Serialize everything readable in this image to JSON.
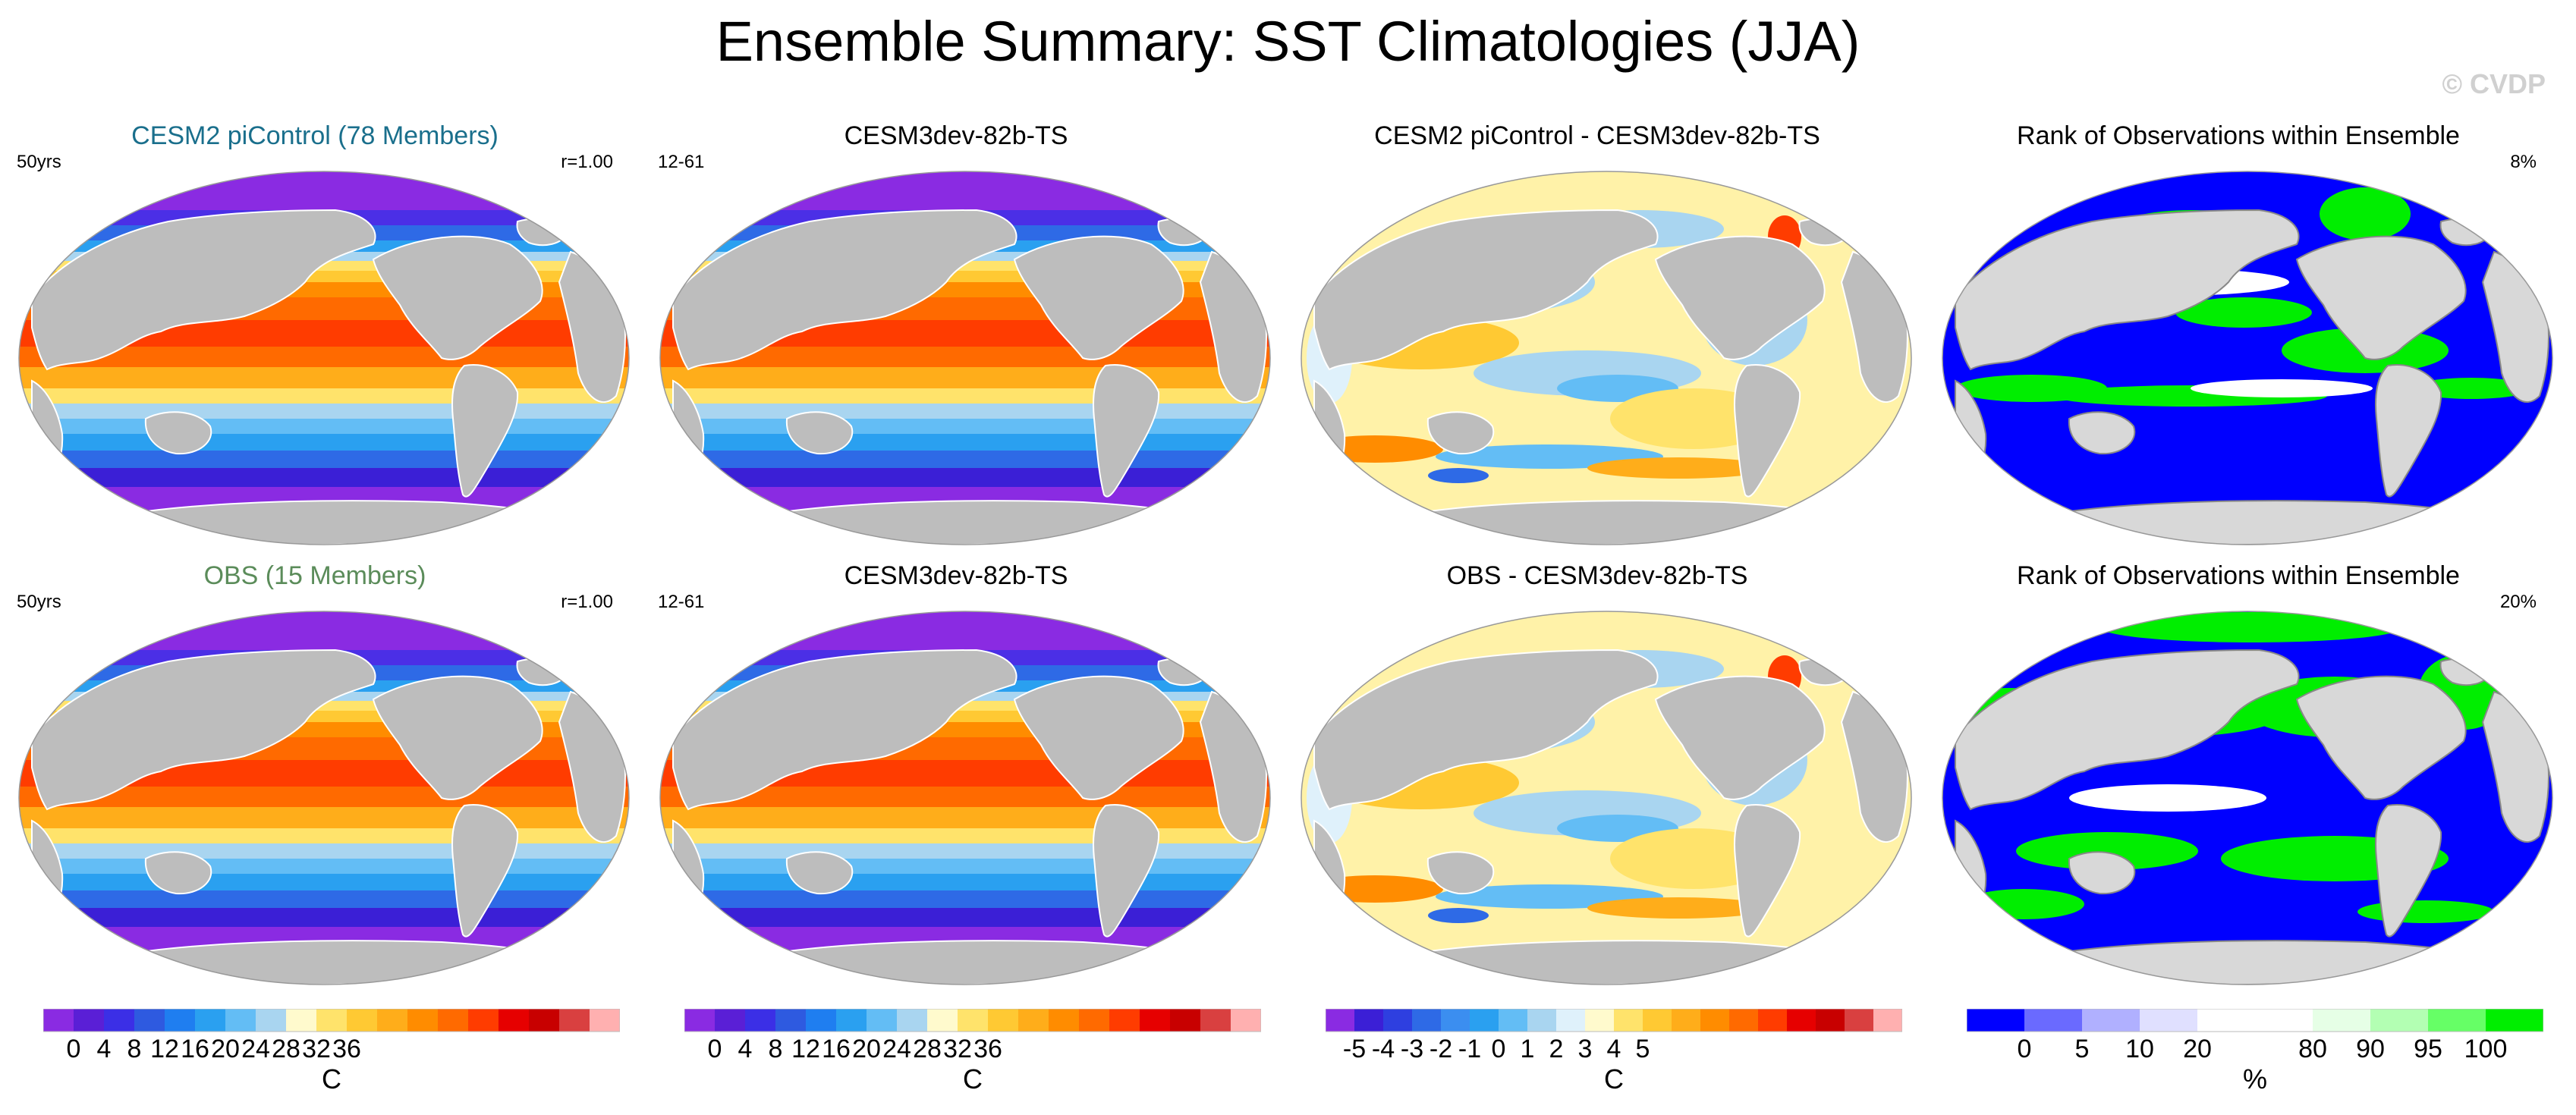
{
  "title": "Ensemble Summary: SST Climatologies (JJA)",
  "copyright": "© CVDP",
  "panels": [
    {
      "title": "CESM2 piControl (78 Members)",
      "title_color": "#1a6f8c",
      "left": "50yrs",
      "right": "r=1.00",
      "map": "sst"
    },
    {
      "title": "CESM3dev-82b-TS",
      "title_color": "#000000",
      "left": "12-61",
      "right": "",
      "map": "sst"
    },
    {
      "title": "CESM2 piControl - CESM3dev-82b-TS",
      "title_color": "#000000",
      "left": "",
      "right": "",
      "map": "diff"
    },
    {
      "title": "Rank of Observations within Ensemble",
      "title_color": "#000000",
      "left": "",
      "right": "8%",
      "map": "rank"
    },
    {
      "title": "OBS (15 Members)",
      "title_color": "#5b8c5a",
      "left": "50yrs",
      "right": "r=1.00",
      "map": "sst"
    },
    {
      "title": "CESM3dev-82b-TS",
      "title_color": "#000000",
      "left": "12-61",
      "right": "",
      "map": "sst"
    },
    {
      "title": "OBS - CESM3dev-82b-TS",
      "title_color": "#000000",
      "left": "",
      "right": "",
      "map": "diff"
    },
    {
      "title": "Rank of Observations within Ensemble",
      "title_color": "#000000",
      "left": "",
      "right": "20%",
      "map": "rank"
    }
  ],
  "colorbars": [
    {
      "label": "C",
      "colors": [
        "#8a2be2",
        "#5a1fd6",
        "#3b2fe6",
        "#2e5ae0",
        "#1f7ef0",
        "#2aa0f0",
        "#63bdf5",
        "#a9d5f0",
        "#fffacd",
        "#ffe36b",
        "#ffc933",
        "#ffad1a",
        "#ff8c00",
        "#ff6a00",
        "#ff3c00",
        "#e60000",
        "#c80000",
        "#d94040",
        "#ffb0b0"
      ],
      "ticks": [
        "0",
        "4",
        "8",
        "12",
        "16",
        "20",
        "24",
        "28",
        "32",
        "36"
      ],
      "tick_index": [
        1,
        2,
        3,
        4,
        5,
        6,
        7,
        8,
        9,
        10
      ]
    },
    {
      "label": "C",
      "colors": [
        "#8a2be2",
        "#5a1fd6",
        "#3b2fe6",
        "#2e5ae0",
        "#1f7ef0",
        "#2aa0f0",
        "#63bdf5",
        "#a9d5f0",
        "#fffacd",
        "#ffe36b",
        "#ffc933",
        "#ffad1a",
        "#ff8c00",
        "#ff6a00",
        "#ff3c00",
        "#e60000",
        "#c80000",
        "#d94040",
        "#ffb0b0"
      ],
      "ticks": [
        "0",
        "4",
        "8",
        "12",
        "16",
        "20",
        "24",
        "28",
        "32",
        "36"
      ],
      "tick_index": [
        1,
        2,
        3,
        4,
        5,
        6,
        7,
        8,
        9,
        10
      ]
    },
    {
      "label": "C",
      "colors": [
        "#8a2be2",
        "#3b1fd6",
        "#2e3fe0",
        "#2e6ae6",
        "#3b8ef0",
        "#2aa0f0",
        "#63bdf5",
        "#a9d5f0",
        "#dff1fb",
        "#fffacd",
        "#ffe36b",
        "#ffc933",
        "#ffad1a",
        "#ff8c00",
        "#ff6a00",
        "#ff3c00",
        "#e60000",
        "#c80000",
        "#d94040",
        "#ffb0b0"
      ],
      "ticks": [
        "-5",
        "-4",
        "-3",
        "-2",
        "-1",
        "0",
        "1",
        "2",
        "3",
        "4",
        "5"
      ],
      "tick_index": [
        1,
        2,
        3,
        4,
        5,
        6,
        7,
        8,
        9,
        10,
        11
      ]
    },
    {
      "label": "%",
      "colors": [
        "#0000ff",
        "#6a6aff",
        "#b0b0ff",
        "#e0e0ff",
        "#ffffff",
        "#ffffff",
        "#e6ffe6",
        "#b3ffb3",
        "#66ff66",
        "#00ee00"
      ],
      "ticks": [
        "0",
        "5",
        "10",
        "20",
        "80",
        "90",
        "95",
        "100"
      ],
      "tick_index": [
        1,
        2,
        3,
        4,
        6,
        7,
        8,
        9
      ]
    }
  ],
  "chart_data": [
    {
      "type": "heatmap",
      "title": "CESM2 piControl (78 Members)",
      "annotation_left": "50yrs",
      "annotation_right": "r=1.00",
      "variable": "SST",
      "units": "C",
      "levels": [
        0,
        36
      ]
    },
    {
      "type": "heatmap",
      "title": "CESM3dev-82b-TS",
      "annotation_left": "12-61",
      "variable": "SST",
      "units": "C",
      "levels": [
        0,
        36
      ]
    },
    {
      "type": "heatmap",
      "title": "CESM2 piControl - CESM3dev-82b-TS",
      "variable": "SST difference",
      "units": "C",
      "levels": [
        -5,
        5
      ]
    },
    {
      "type": "heatmap",
      "title": "Rank of Observations within Ensemble",
      "annotation_right": "8%",
      "units": "%",
      "levels": [
        0,
        100
      ]
    },
    {
      "type": "heatmap",
      "title": "OBS (15 Members)",
      "annotation_left": "50yrs",
      "annotation_right": "r=1.00",
      "variable": "SST",
      "units": "C",
      "levels": [
        0,
        36
      ]
    },
    {
      "type": "heatmap",
      "title": "CESM3dev-82b-TS",
      "annotation_left": "12-61",
      "variable": "SST",
      "units": "C",
      "levels": [
        0,
        36
      ]
    },
    {
      "type": "heatmap",
      "title": "OBS - CESM3dev-82b-TS",
      "variable": "SST difference",
      "units": "C",
      "levels": [
        -5,
        5
      ]
    },
    {
      "type": "heatmap",
      "title": "Rank of Observations within Ensemble",
      "annotation_right": "20%",
      "units": "%",
      "levels": [
        0,
        100
      ]
    }
  ]
}
